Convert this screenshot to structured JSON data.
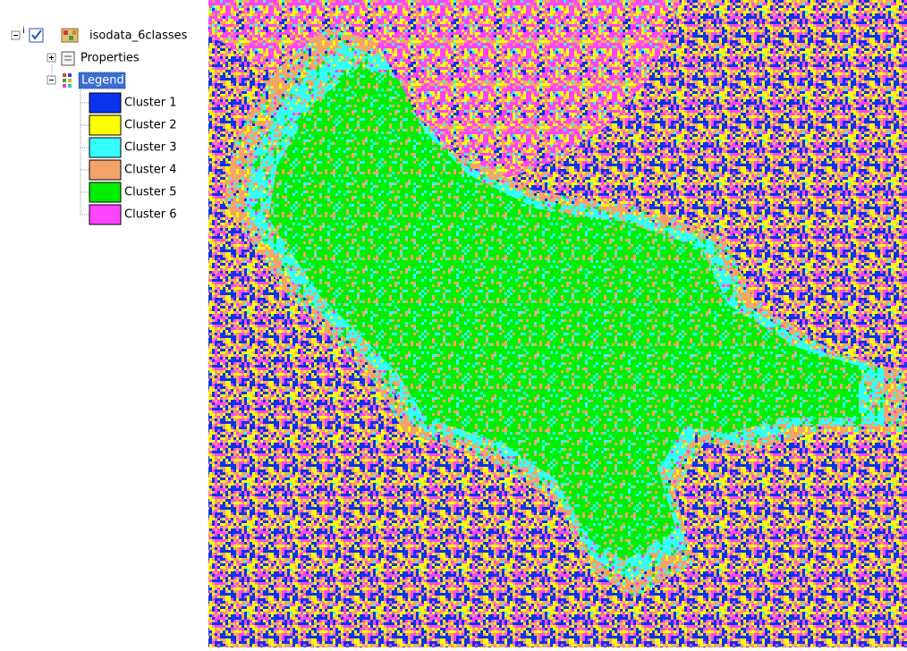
{
  "tree": {
    "root": {
      "label": "isodata_6classes"
    },
    "properties": {
      "label": "Properties"
    },
    "legend": {
      "label": "Legend",
      "items": [
        {
          "label": "Cluster 1",
          "color": "#0a33f0"
        },
        {
          "label": "Cluster 2",
          "color": "#ffff00"
        },
        {
          "label": "Cluster 3",
          "color": "#33ffff"
        },
        {
          "label": "Cluster 4",
          "color": "#f4a46a"
        },
        {
          "label": "Cluster 5",
          "color": "#00ee00"
        },
        {
          "label": "Cluster 6",
          "color": "#ff44ff"
        }
      ]
    }
  }
}
